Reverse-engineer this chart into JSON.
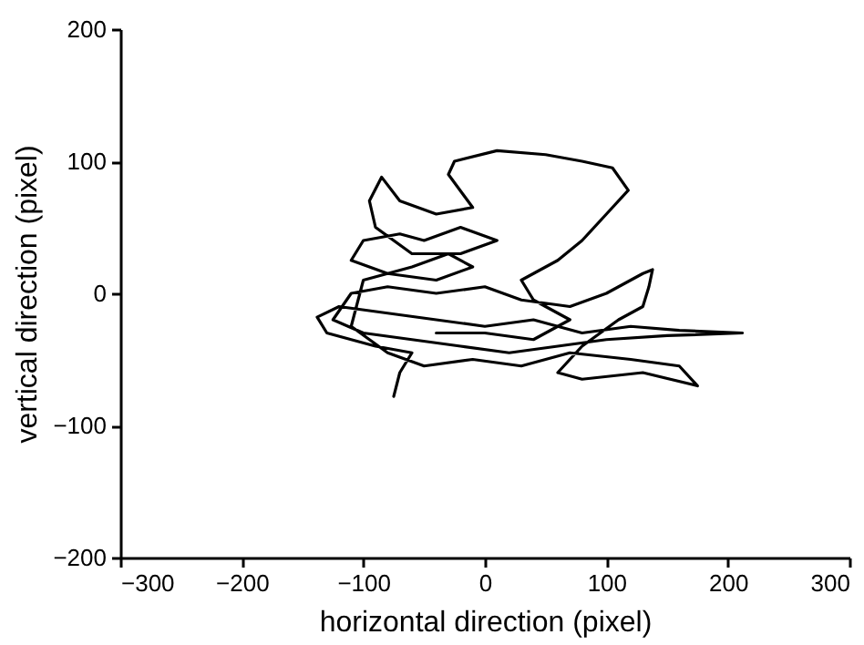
{
  "chart_data": {
    "type": "line",
    "xlabel": "horizontal direction (pixel)",
    "ylabel": "vertical direction (pixel)",
    "x": [
      -75,
      -70,
      -60,
      -90,
      -130,
      -138,
      -120,
      -80,
      -40,
      0,
      40,
      80,
      120,
      160,
      212,
      150,
      100,
      60,
      20,
      -20,
      -60,
      -100,
      -125,
      -110,
      -80,
      -40,
      0,
      30,
      70,
      100,
      130,
      138,
      135,
      130,
      110,
      80,
      60,
      80,
      130,
      175,
      160,
      120,
      70,
      30,
      -10,
      -50,
      -80,
      -110,
      -100,
      -60,
      -30,
      -10,
      -40,
      -80,
      -110,
      -100,
      -70,
      -50,
      -20,
      10,
      -20,
      -60,
      -90,
      -95,
      -85,
      -70,
      -40,
      -10,
      -30,
      -25,
      10,
      50,
      80,
      105,
      118,
      100,
      80,
      60,
      30,
      40,
      70,
      40,
      0,
      -40
    ],
    "series": [
      {
        "color": "#000000",
        "values": [
          -78,
          -60,
          -45,
          -40,
          -30,
          -18,
          -10,
          -15,
          -20,
          -25,
          -20,
          -30,
          -25,
          -28,
          -30,
          -32,
          -35,
          -40,
          -45,
          -40,
          -35,
          -30,
          -20,
          0,
          5,
          0,
          5,
          -5,
          -10,
          0,
          15,
          18,
          5,
          -10,
          -20,
          -40,
          -60,
          -65,
          -60,
          -70,
          -55,
          -50,
          -45,
          -55,
          -50,
          -55,
          -45,
          -25,
          10,
          20,
          30,
          20,
          10,
          15,
          25,
          40,
          45,
          40,
          50,
          40,
          30,
          30,
          50,
          70,
          88,
          70,
          60,
          65,
          90,
          100,
          108,
          105,
          100,
          95,
          78,
          60,
          40,
          25,
          10,
          -5,
          -20,
          -35,
          -30,
          -30
        ]
      }
    ],
    "xlim": [
      -300,
      300
    ],
    "xticks": [
      -300,
      -200,
      -100,
      0,
      100,
      200,
      300
    ],
    "ylim": [
      -200,
      200
    ],
    "yticks": [
      -200,
      -100,
      0,
      100,
      200
    ],
    "marker": "none",
    "line_style": "solid",
    "grid": false
  }
}
